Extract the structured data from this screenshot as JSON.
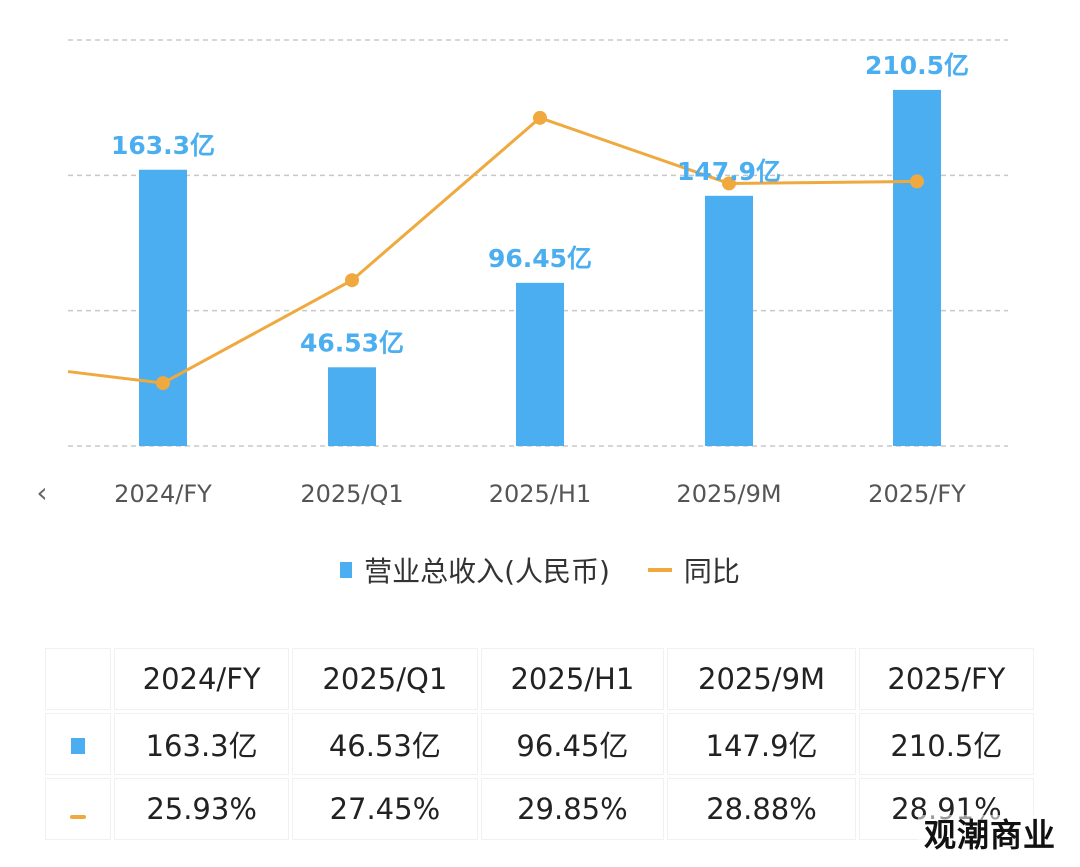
{
  "chart_data": {
    "type": "bar",
    "categories": [
      "2024/FY",
      "2025/Q1",
      "2025/H1",
      "2025/9M",
      "2025/FY"
    ],
    "series": [
      {
        "name": "营业总收入(人民币)",
        "type": "bar",
        "values": [
          163.3,
          46.53,
          96.45,
          147.9,
          210.5
        ],
        "labels": [
          "163.3亿",
          "46.53亿",
          "96.45亿",
          "147.9亿",
          "210.5亿"
        ],
        "color": "#4aaef0"
      },
      {
        "name": "同比",
        "type": "line",
        "values": [
          25.93,
          27.45,
          29.85,
          28.88,
          28.91
        ],
        "previous_value": 26.1,
        "color": "#efa93f"
      }
    ],
    "ylim_left": [
      0,
      240
    ],
    "ylim_right": [
      25,
      31
    ],
    "grid": true,
    "legend_position": "bottom-center"
  },
  "nav": {
    "previous_icon": "chevron-left-icon"
  },
  "table": {
    "headers": [
      "2024/FY",
      "2025/Q1",
      "2025/H1",
      "2025/9M",
      "2025/FY"
    ],
    "rows": [
      {
        "icon": "bar-legend-icon",
        "values": [
          "163.3亿",
          "46.53亿",
          "96.45亿",
          "147.9亿",
          "210.5亿"
        ]
      },
      {
        "icon": "line-legend-icon",
        "values": [
          "25.93%",
          "27.45%",
          "29.85%",
          "28.88%",
          "28.91%"
        ]
      }
    ]
  },
  "watermark": "观潮商业"
}
